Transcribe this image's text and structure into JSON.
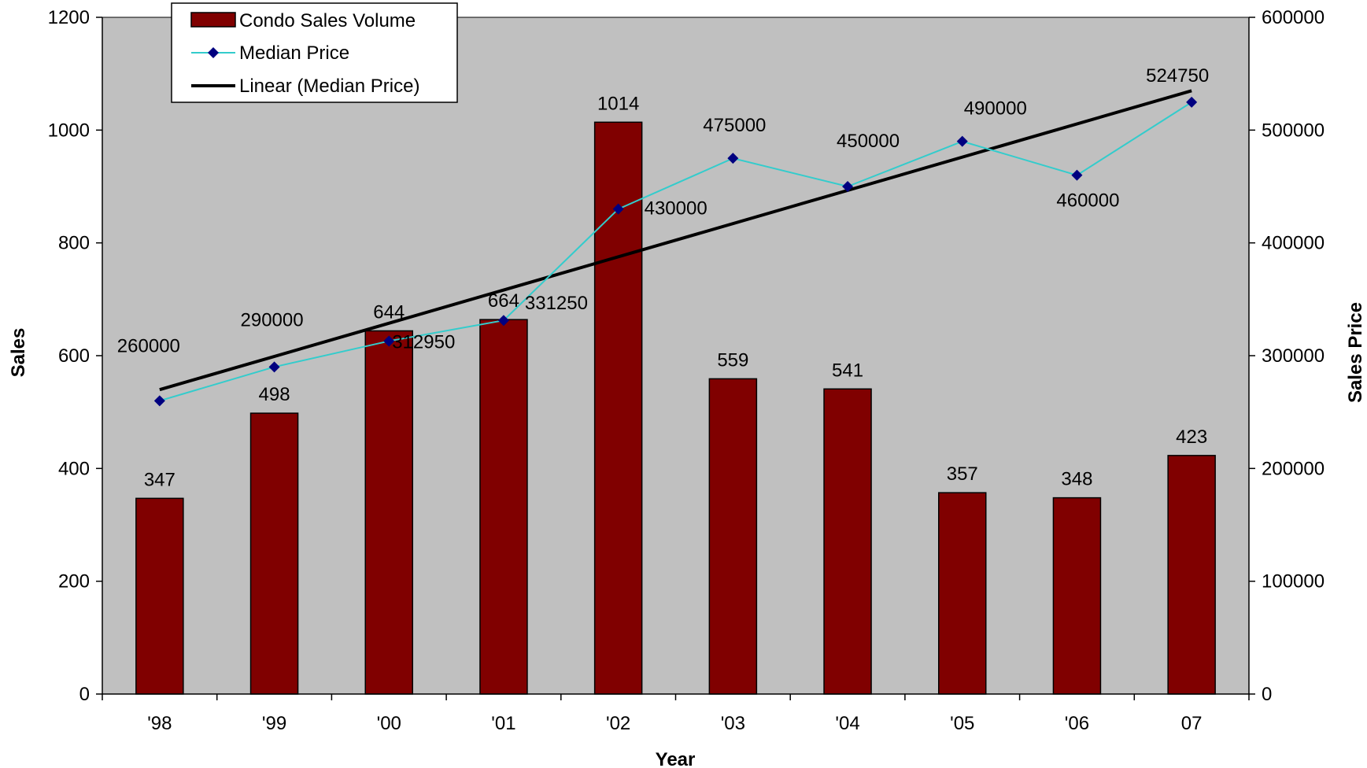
{
  "chart_data": {
    "type": "bar",
    "categories": [
      "'98",
      "'99",
      "'00",
      "'01",
      "'02",
      "'03",
      "'04",
      "'05",
      "'06",
      "07"
    ],
    "series": [
      {
        "name": "Condo Sales Volume",
        "type": "bar",
        "axis": "left",
        "color": "#800000",
        "values": [
          347,
          498,
          644,
          664,
          1014,
          559,
          541,
          357,
          348,
          423
        ],
        "labels": [
          "347",
          "498",
          "644",
          "664",
          "1014",
          "559",
          "541",
          "357",
          "348",
          "423"
        ]
      },
      {
        "name": "Median Price",
        "type": "line",
        "axis": "right",
        "color": "#33CCCC",
        "marker_color": "#000080",
        "marker": "diamond",
        "values": [
          260000,
          290000,
          312950,
          331250,
          430000,
          475000,
          450000,
          490000,
          460000,
          524750
        ],
        "labels": [
          "260000",
          "290000",
          "312950",
          "331250",
          "430000",
          "475000",
          "450000",
          "490000",
          "460000",
          "524750"
        ]
      },
      {
        "name": "Linear (Median Price)",
        "type": "trendline",
        "axis": "right",
        "color": "#000000"
      }
    ],
    "xlabel": "Year",
    "ylabel": "Sales",
    "y2label": "Sales Price",
    "ylim": [
      0,
      1200
    ],
    "y2lim": [
      0,
      600000
    ],
    "yticks": [
      "0",
      "200",
      "400",
      "600",
      "800",
      "1000",
      "1200"
    ],
    "y2ticks": [
      "0",
      "100000",
      "200000",
      "300000",
      "400000",
      "500000",
      "600000"
    ],
    "plot_background": "#C0C0C0",
    "grid": false,
    "legend_position": "top-left"
  }
}
